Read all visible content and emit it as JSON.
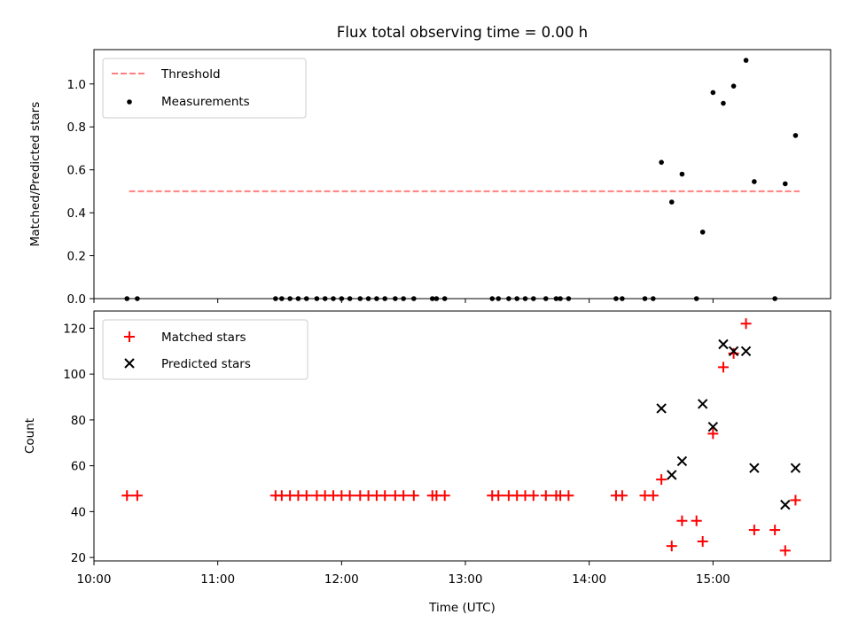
{
  "chart_data": [
    {
      "type": "scatter",
      "title": "Flux total observing time = 0.00 h",
      "xlabel": "",
      "ylabel": "Matched/Predicted stars",
      "xlim": [
        "10:00",
        "15:57"
      ],
      "ylim": [
        0,
        1.16
      ],
      "yticks": [
        "0.0",
        "0.2",
        "0.4",
        "0.6",
        "0.8",
        "1.0"
      ],
      "legend_position": "top-left",
      "series": [
        {
          "name": "Threshold",
          "kind": "dashed-line",
          "color": "#ff7f7f",
          "points": [
            {
              "x": "10:17",
              "y": 0.5
            },
            {
              "x": "15:42",
              "y": 0.5
            }
          ]
        },
        {
          "name": "Measurements",
          "kind": "dot",
          "color": "#000000",
          "points": [
            {
              "x": "10:16",
              "y": 0.0
            },
            {
              "x": "10:21",
              "y": 0.0
            },
            {
              "x": "11:28",
              "y": 0.0
            },
            {
              "x": "11:31",
              "y": 0.0
            },
            {
              "x": "11:35",
              "y": 0.0
            },
            {
              "x": "11:39",
              "y": 0.0
            },
            {
              "x": "11:43",
              "y": 0.0
            },
            {
              "x": "11:48",
              "y": 0.0
            },
            {
              "x": "11:52",
              "y": 0.0
            },
            {
              "x": "11:56",
              "y": 0.0
            },
            {
              "x": "12:00",
              "y": 0.0
            },
            {
              "x": "12:04",
              "y": 0.0
            },
            {
              "x": "12:09",
              "y": 0.0
            },
            {
              "x": "12:13",
              "y": 0.0
            },
            {
              "x": "12:17",
              "y": 0.0
            },
            {
              "x": "12:21",
              "y": 0.0
            },
            {
              "x": "12:26",
              "y": 0.0
            },
            {
              "x": "12:30",
              "y": 0.0
            },
            {
              "x": "12:35",
              "y": 0.0
            },
            {
              "x": "12:44",
              "y": 0.0
            },
            {
              "x": "12:46",
              "y": 0.0
            },
            {
              "x": "12:50",
              "y": 0.0
            },
            {
              "x": "13:13",
              "y": 0.0
            },
            {
              "x": "13:16",
              "y": 0.0
            },
            {
              "x": "13:21",
              "y": 0.0
            },
            {
              "x": "13:25",
              "y": 0.0
            },
            {
              "x": "13:29",
              "y": 0.0
            },
            {
              "x": "13:33",
              "y": 0.0
            },
            {
              "x": "13:39",
              "y": 0.0
            },
            {
              "x": "13:44",
              "y": 0.0
            },
            {
              "x": "13:46",
              "y": 0.0
            },
            {
              "x": "13:50",
              "y": 0.0
            },
            {
              "x": "14:13",
              "y": 0.0
            },
            {
              "x": "14:16",
              "y": 0.0
            },
            {
              "x": "14:27",
              "y": 0.0
            },
            {
              "x": "14:31",
              "y": 0.0
            },
            {
              "x": "14:35",
              "y": 0.635
            },
            {
              "x": "14:40",
              "y": 0.45
            },
            {
              "x": "14:45",
              "y": 0.58
            },
            {
              "x": "14:52",
              "y": 0.0
            },
            {
              "x": "14:55",
              "y": 0.31
            },
            {
              "x": "15:00",
              "y": 0.96
            },
            {
              "x": "15:05",
              "y": 0.91
            },
            {
              "x": "15:10",
              "y": 0.99
            },
            {
              "x": "15:16",
              "y": 1.11
            },
            {
              "x": "15:20",
              "y": 0.545
            },
            {
              "x": "15:30",
              "y": 0.0
            },
            {
              "x": "15:35",
              "y": 0.535
            },
            {
              "x": "15:40",
              "y": 0.76
            }
          ]
        }
      ]
    },
    {
      "type": "scatter",
      "title": "",
      "xlabel": "Time (UTC)",
      "ylabel": "Count",
      "xlim": [
        "10:00",
        "15:57"
      ],
      "ylim": [
        18.5,
        127.5
      ],
      "xticks": [
        "10:00",
        "11:00",
        "12:00",
        "13:00",
        "14:00",
        "15:00"
      ],
      "yticks": [
        "20",
        "40",
        "60",
        "80",
        "100",
        "120"
      ],
      "legend_position": "top-left",
      "series": [
        {
          "name": "Matched stars",
          "kind": "plus",
          "color": "#ff0000",
          "points": [
            {
              "x": "10:16",
              "y": 47
            },
            {
              "x": "10:21",
              "y": 47
            },
            {
              "x": "11:28",
              "y": 47
            },
            {
              "x": "11:31",
              "y": 47
            },
            {
              "x": "11:35",
              "y": 47
            },
            {
              "x": "11:39",
              "y": 47
            },
            {
              "x": "11:43",
              "y": 47
            },
            {
              "x": "11:48",
              "y": 47
            },
            {
              "x": "11:52",
              "y": 47
            },
            {
              "x": "11:56",
              "y": 47
            },
            {
              "x": "12:00",
              "y": 47
            },
            {
              "x": "12:04",
              "y": 47
            },
            {
              "x": "12:09",
              "y": 47
            },
            {
              "x": "12:13",
              "y": 47
            },
            {
              "x": "12:17",
              "y": 47
            },
            {
              "x": "12:21",
              "y": 47
            },
            {
              "x": "12:26",
              "y": 47
            },
            {
              "x": "12:30",
              "y": 47
            },
            {
              "x": "12:35",
              "y": 47
            },
            {
              "x": "12:44",
              "y": 47
            },
            {
              "x": "12:46",
              "y": 47
            },
            {
              "x": "12:50",
              "y": 47
            },
            {
              "x": "13:13",
              "y": 47
            },
            {
              "x": "13:16",
              "y": 47
            },
            {
              "x": "13:21",
              "y": 47
            },
            {
              "x": "13:25",
              "y": 47
            },
            {
              "x": "13:29",
              "y": 47
            },
            {
              "x": "13:33",
              "y": 47
            },
            {
              "x": "13:39",
              "y": 47
            },
            {
              "x": "13:44",
              "y": 47
            },
            {
              "x": "13:46",
              "y": 47
            },
            {
              "x": "13:50",
              "y": 47
            },
            {
              "x": "14:13",
              "y": 47
            },
            {
              "x": "14:16",
              "y": 47
            },
            {
              "x": "14:27",
              "y": 47
            },
            {
              "x": "14:31",
              "y": 47
            },
            {
              "x": "14:35",
              "y": 54
            },
            {
              "x": "14:40",
              "y": 25
            },
            {
              "x": "14:45",
              "y": 36
            },
            {
              "x": "14:52",
              "y": 36
            },
            {
              "x": "14:55",
              "y": 27
            },
            {
              "x": "15:00",
              "y": 74
            },
            {
              "x": "15:05",
              "y": 103
            },
            {
              "x": "15:10",
              "y": 109
            },
            {
              "x": "15:16",
              "y": 122
            },
            {
              "x": "15:20",
              "y": 32
            },
            {
              "x": "15:30",
              "y": 32
            },
            {
              "x": "15:35",
              "y": 23
            },
            {
              "x": "15:40",
              "y": 45
            }
          ]
        },
        {
          "name": "Predicted stars",
          "kind": "cross",
          "color": "#000000",
          "points": [
            {
              "x": "14:35",
              "y": 85
            },
            {
              "x": "14:40",
              "y": 56
            },
            {
              "x": "14:45",
              "y": 62
            },
            {
              "x": "14:55",
              "y": 87
            },
            {
              "x": "15:00",
              "y": 77
            },
            {
              "x": "15:05",
              "y": 113
            },
            {
              "x": "15:10",
              "y": 110
            },
            {
              "x": "15:16",
              "y": 110
            },
            {
              "x": "15:20",
              "y": 59
            },
            {
              "x": "15:35",
              "y": 43
            },
            {
              "x": "15:40",
              "y": 59
            }
          ]
        }
      ]
    }
  ]
}
